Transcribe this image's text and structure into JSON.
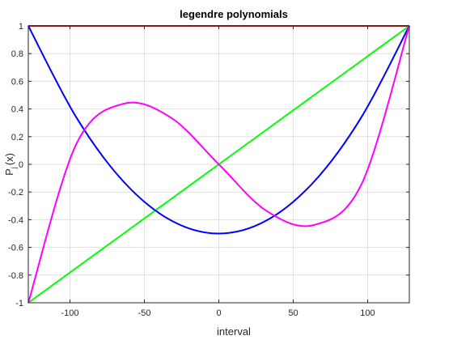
{
  "chart_data": {
    "type": "line",
    "title": "legendre polynomials",
    "xlabel": "interval",
    "ylabel_main": "P",
    "ylabel_sub": "j",
    "ylabel_rest": "(x)",
    "xlim": [
      -128,
      128
    ],
    "ylim": [
      -1,
      1
    ],
    "grid": true,
    "x_ticks": [
      -100,
      -50,
      0,
      50,
      100
    ],
    "x_tick_labels": [
      "-100",
      "-50",
      "0",
      "50",
      "100"
    ],
    "y_ticks": [
      -1,
      -0.8,
      -0.6,
      -0.4,
      -0.2,
      0,
      0.2,
      0.4,
      0.6,
      0.8,
      1
    ],
    "y_tick_labels": [
      "-1",
      "-0.8",
      "-0.6",
      "-0.4",
      "-0.2",
      "0",
      "0.2",
      "0.4",
      "0.6",
      "0.8",
      "1"
    ],
    "x": [
      -128,
      -96,
      -64,
      -32,
      0,
      32,
      64,
      96,
      128
    ],
    "series": [
      {
        "color": "#ff0000",
        "values": [
          1,
          1,
          1,
          1,
          1,
          1,
          1,
          1,
          1
        ]
      },
      {
        "color": "#00ff00",
        "values": [
          -1,
          -0.75,
          -0.5,
          -0.25,
          0,
          0.25,
          0.5,
          0.75,
          1
        ]
      },
      {
        "color": "#0000ff",
        "values": [
          1,
          0.344,
          -0.125,
          -0.406,
          -0.5,
          -0.406,
          -0.125,
          0.344,
          1
        ]
      },
      {
        "color": "#ff00ff",
        "values": [
          -1,
          0.141,
          0.438,
          0.336,
          0,
          -0.336,
          -0.438,
          -0.141,
          1
        ]
      }
    ]
  }
}
